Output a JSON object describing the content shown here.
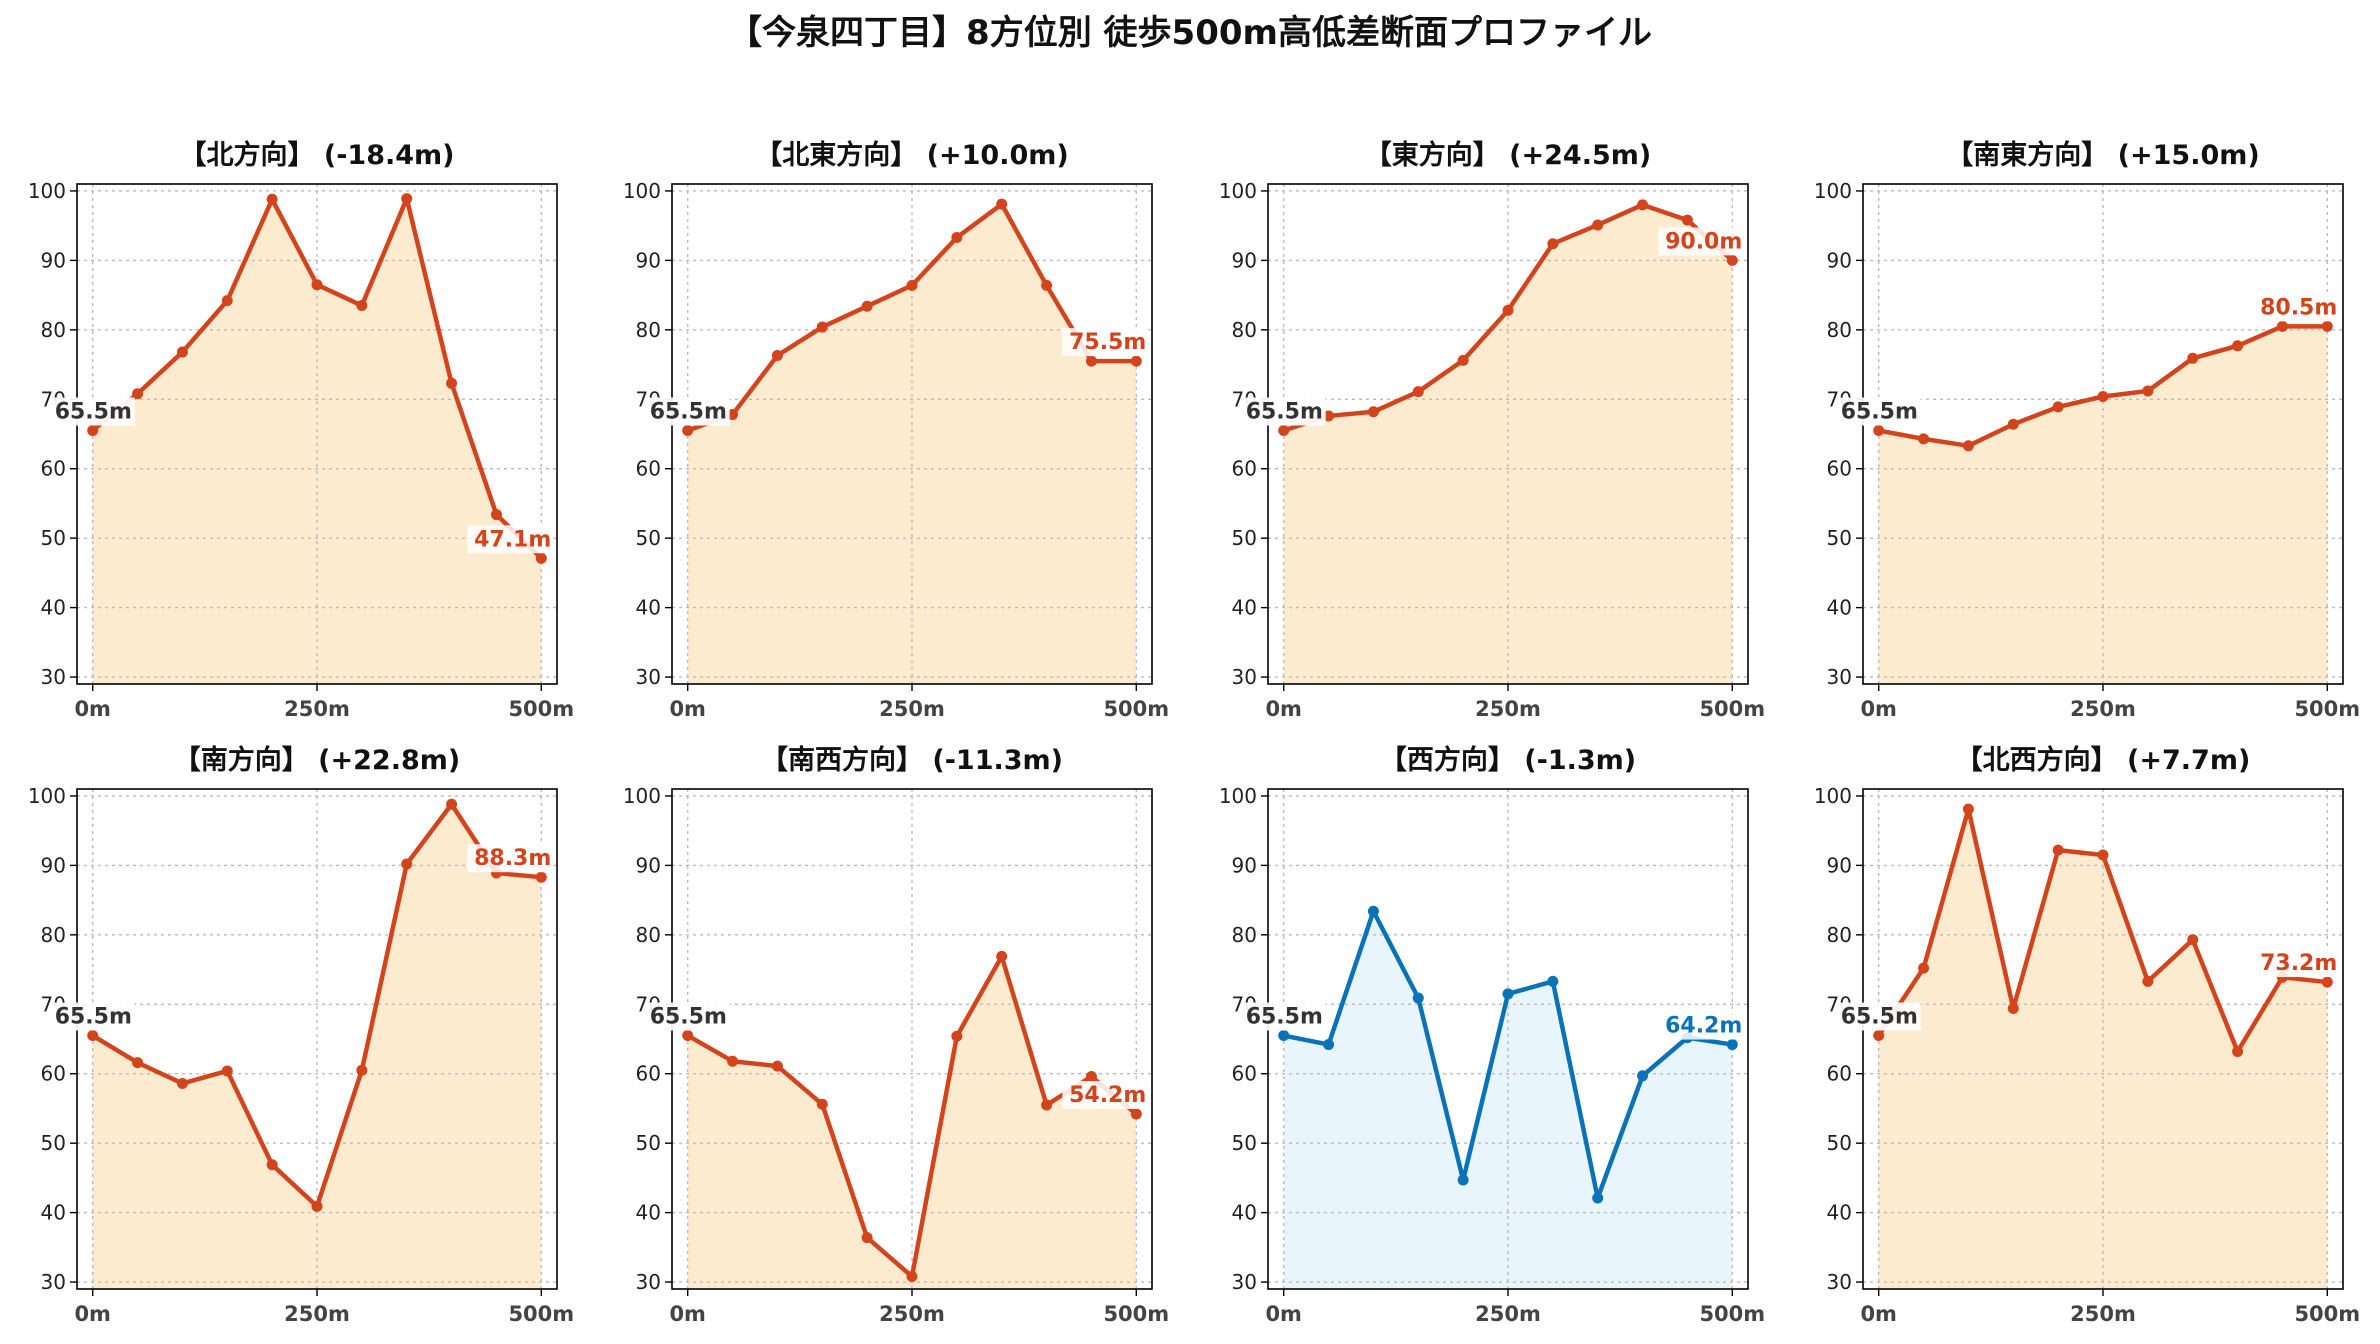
{
  "title": "【今泉四丁目】8方位別 徒歩500m高低差断面プロファイル",
  "colors": {
    "up": "#d4441c",
    "up_fill": "#fdebd0",
    "down": "#0a72b8",
    "down_fill": "#e8f5fc",
    "start_label": "#333333"
  },
  "chart_data": [
    {
      "type": "area",
      "title": "【北方向】 (-18.4m)",
      "x": [
        0,
        50,
        100,
        150,
        200,
        250,
        300,
        350,
        400,
        450,
        500
      ],
      "x_ticks": [
        "0m",
        "250m",
        "500m"
      ],
      "y_ticks": [
        30,
        40,
        50,
        60,
        70,
        80,
        90,
        100
      ],
      "ylim": [
        29,
        101
      ],
      "grid": true,
      "values": [
        65.5,
        70.8,
        76.8,
        84.2,
        98.8,
        86.5,
        83.5,
        98.9,
        72.3,
        53.4,
        47.1
      ],
      "start_label": "65.5m",
      "end_label": "47.1m"
    },
    {
      "type": "area",
      "title": "【北東方向】 (+10.0m)",
      "x": [
        0,
        50,
        100,
        150,
        200,
        250,
        300,
        350,
        400,
        450,
        500
      ],
      "x_ticks": [
        "0m",
        "250m",
        "500m"
      ],
      "y_ticks": [
        30,
        40,
        50,
        60,
        70,
        80,
        90,
        100
      ],
      "ylim": [
        29,
        101
      ],
      "grid": true,
      "values": [
        65.5,
        67.8,
        76.3,
        80.4,
        83.4,
        86.4,
        93.3,
        98.1,
        86.4,
        75.5,
        75.5
      ],
      "start_label": "65.5m",
      "end_label": "75.5m"
    },
    {
      "type": "area",
      "title": "【東方向】 (+24.5m)",
      "x": [
        0,
        50,
        100,
        150,
        200,
        250,
        300,
        350,
        400,
        450,
        500
      ],
      "x_ticks": [
        "0m",
        "250m",
        "500m"
      ],
      "y_ticks": [
        30,
        40,
        50,
        60,
        70,
        80,
        90,
        100
      ],
      "ylim": [
        29,
        101
      ],
      "grid": true,
      "values": [
        65.5,
        67.6,
        68.2,
        71.1,
        75.6,
        82.8,
        92.4,
        95.1,
        98.0,
        95.8,
        90.0
      ],
      "start_label": "65.5m",
      "end_label": "90.0m"
    },
    {
      "type": "area",
      "title": "【南東方向】 (+15.0m)",
      "x": [
        0,
        50,
        100,
        150,
        200,
        250,
        300,
        350,
        400,
        450,
        500
      ],
      "x_ticks": [
        "0m",
        "250m",
        "500m"
      ],
      "y_ticks": [
        30,
        40,
        50,
        60,
        70,
        80,
        90,
        100
      ],
      "ylim": [
        29,
        101
      ],
      "grid": true,
      "values": [
        65.5,
        64.3,
        63.3,
        66.4,
        68.9,
        70.4,
        71.2,
        75.9,
        77.7,
        80.5,
        80.5
      ],
      "start_label": "65.5m",
      "end_label": "80.5m"
    },
    {
      "type": "area",
      "title": "【南方向】 (+22.8m)",
      "x": [
        0,
        50,
        100,
        150,
        200,
        250,
        300,
        350,
        400,
        450,
        500
      ],
      "x_ticks": [
        "0m",
        "250m",
        "500m"
      ],
      "y_ticks": [
        30,
        40,
        50,
        60,
        70,
        80,
        90,
        100
      ],
      "ylim": [
        29,
        101
      ],
      "grid": true,
      "values": [
        65.5,
        61.6,
        58.6,
        60.4,
        46.9,
        40.9,
        60.5,
        90.2,
        98.8,
        88.9,
        88.3
      ],
      "start_label": "65.5m",
      "end_label": "88.3m"
    },
    {
      "type": "area",
      "title": "【南西方向】 (-11.3m)",
      "x": [
        0,
        50,
        100,
        150,
        200,
        250,
        300,
        350,
        400,
        450,
        500
      ],
      "x_ticks": [
        "0m",
        "250m",
        "500m"
      ],
      "y_ticks": [
        30,
        40,
        50,
        60,
        70,
        80,
        90,
        100
      ],
      "ylim": [
        29,
        101
      ],
      "grid": true,
      "values": [
        65.5,
        61.8,
        61.1,
        55.6,
        36.4,
        30.8,
        65.4,
        76.9,
        55.5,
        59.6,
        54.2
      ],
      "start_label": "65.5m",
      "end_label": "54.2m"
    },
    {
      "type": "area",
      "title": "【西方向】 (-1.3m)",
      "x": [
        0,
        50,
        100,
        150,
        200,
        250,
        300,
        350,
        400,
        450,
        500
      ],
      "x_ticks": [
        "0m",
        "250m",
        "500m"
      ],
      "y_ticks": [
        30,
        40,
        50,
        60,
        70,
        80,
        90,
        100
      ],
      "ylim": [
        29,
        101
      ],
      "grid": true,
      "values": [
        65.5,
        64.2,
        83.4,
        70.9,
        44.7,
        71.5,
        73.3,
        42.1,
        59.7,
        65.2,
        64.2
      ],
      "start_label": "65.5m",
      "end_label": "64.2m"
    },
    {
      "type": "area",
      "title": "【北西方向】 (+7.7m)",
      "x": [
        0,
        50,
        100,
        150,
        200,
        250,
        300,
        350,
        400,
        450,
        500
      ],
      "x_ticks": [
        "0m",
        "250m",
        "500m"
      ],
      "y_ticks": [
        30,
        40,
        50,
        60,
        70,
        80,
        90,
        100
      ],
      "ylim": [
        29,
        101
      ],
      "grid": true,
      "values": [
        65.5,
        75.2,
        98.1,
        69.4,
        92.2,
        91.5,
        73.3,
        79.3,
        63.2,
        73.9,
        73.2
      ],
      "start_label": "65.5m",
      "end_label": "73.2m"
    }
  ]
}
